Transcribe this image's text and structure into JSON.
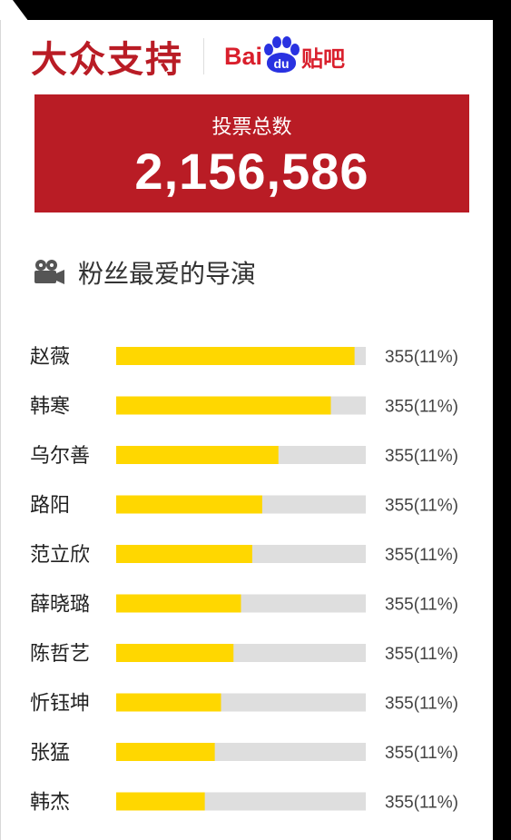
{
  "header": {
    "title": "大众支持",
    "logo_left": "Bai",
    "logo_paw": "du",
    "logo_right": "贴吧"
  },
  "total": {
    "label": "投票总数",
    "value": "2,156,586"
  },
  "section": {
    "title": "粉丝最爱的导演",
    "icon": "film-camera-icon"
  },
  "colors": {
    "accent": "#b91c25",
    "bar_fill": "#ffd700",
    "bar_track": "#dedede",
    "logo_blue": "#2932e1",
    "logo_red": "#d91f2c"
  },
  "chart_data": {
    "type": "bar",
    "orientation": "horizontal",
    "categories": [
      "赵薇",
      "韩寒",
      "乌尔善",
      "路阳",
      "范立欣",
      "薛晓璐",
      "陈哲艺",
      "忻钰坤",
      "张猛",
      "韩杰"
    ],
    "fill_fractions": [
      0.955,
      0.86,
      0.65,
      0.585,
      0.545,
      0.5,
      0.47,
      0.42,
      0.395,
      0.355
    ],
    "value_labels": [
      "355(11%)",
      "355(11%)",
      "355(11%)",
      "355(11%)",
      "355(11%)",
      "355(11%)",
      "355(11%)",
      "355(11%)",
      "355(11%)",
      "355(11%)"
    ]
  }
}
